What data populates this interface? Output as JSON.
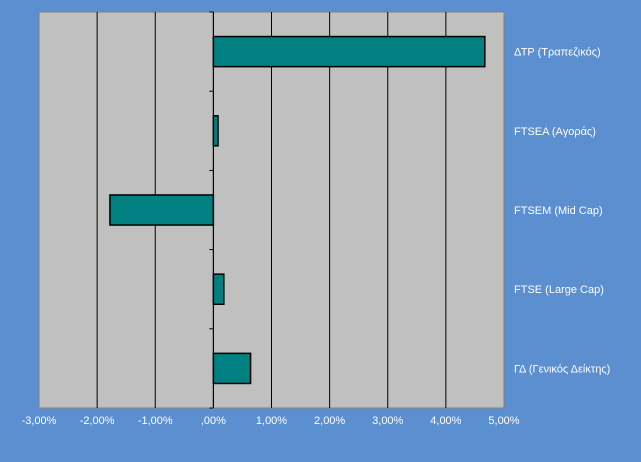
{
  "chart_data": {
    "type": "bar",
    "orientation": "horizontal",
    "categories": [
      "ΔΤΡ (Τραπεζικός)",
      "FTSEA (Αγοράς)",
      "FTSEM (Mid Cap)",
      "FTSE (Large Cap)",
      "ΓΔ (Γενικός Δείκτης)"
    ],
    "values": [
      4.67,
      0.08,
      -1.78,
      0.18,
      0.64
    ],
    "xlim": [
      -3,
      5
    ],
    "xticks": [
      -3,
      -2,
      -1,
      0,
      1,
      2,
      3,
      4,
      5
    ],
    "xtick_labels": [
      "-3,00%",
      "-2,00%",
      "-1,00%",
      ",00%",
      "1,00%",
      "2,00%",
      "3,00%",
      "4,00%",
      "5,00%"
    ],
    "grid": "vertical",
    "legend": "none",
    "colors": {
      "background": "#5b8fcf",
      "plot_area": "#c0c0c0",
      "bar_fill": "#008080",
      "bar_stroke": "#000000",
      "grid": "#000000",
      "text": "#ffffff"
    }
  }
}
